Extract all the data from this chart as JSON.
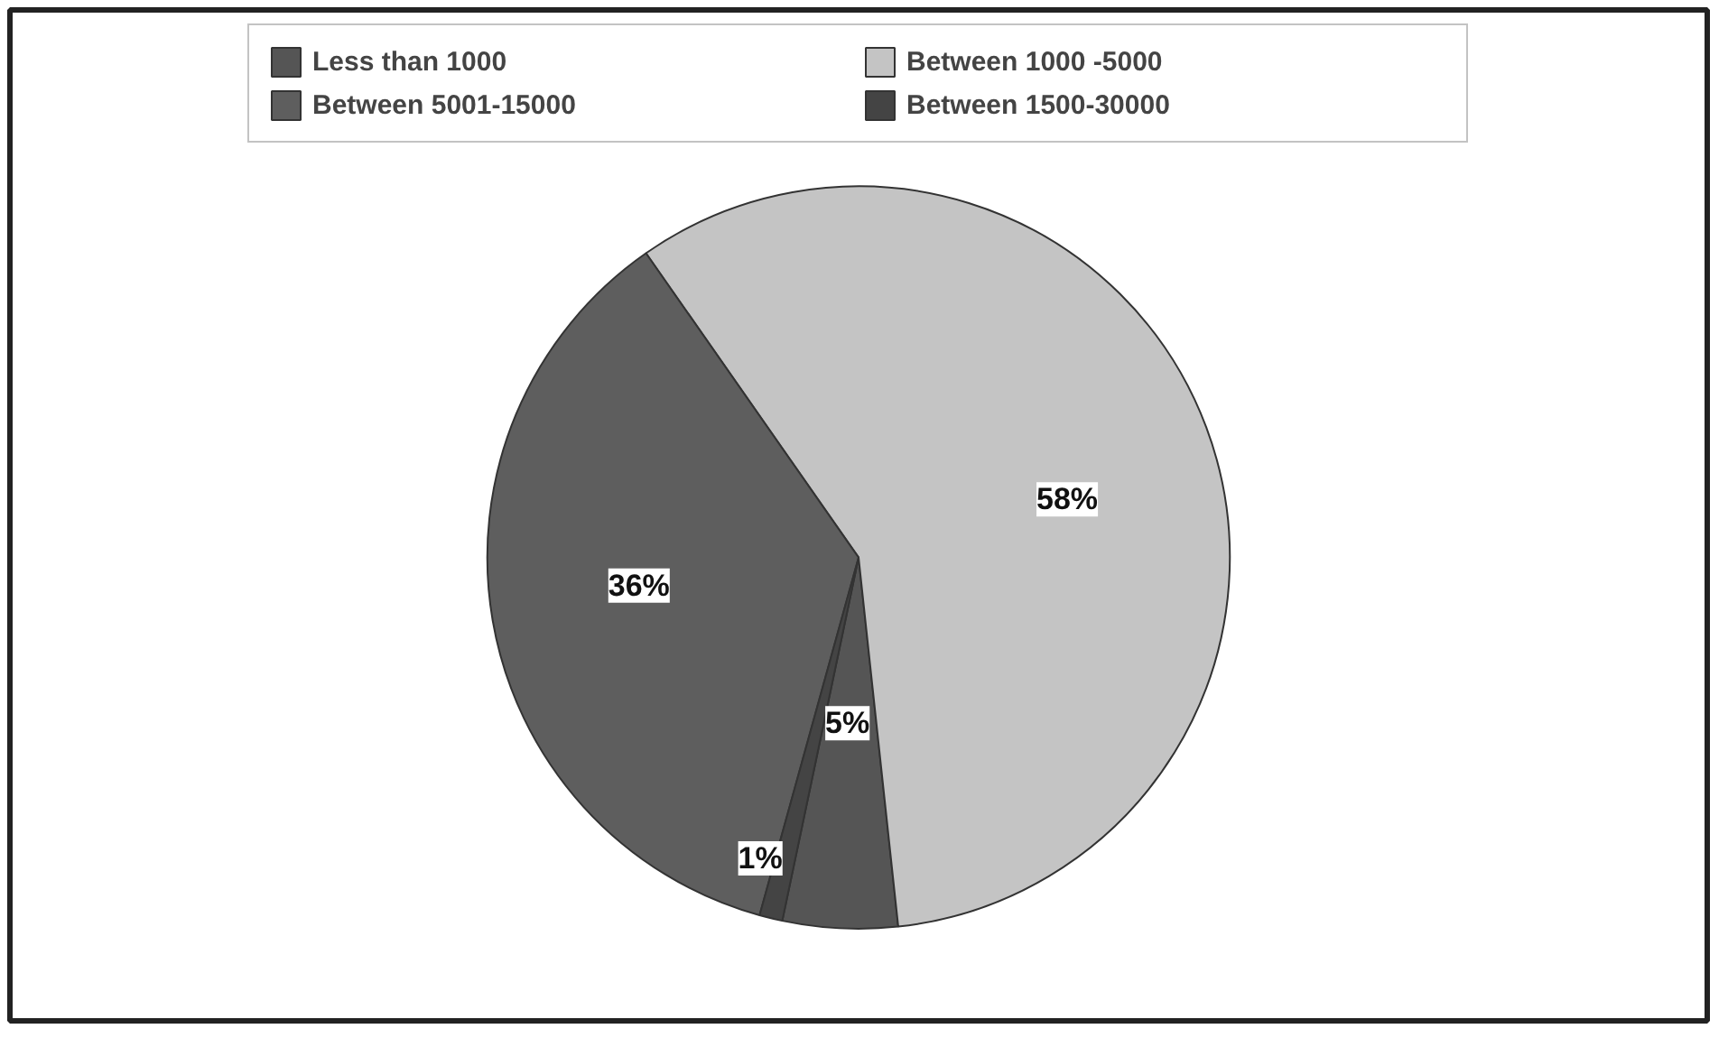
{
  "chart_data": {
    "type": "pie",
    "categories": [
      "Less than 1000",
      "Between 1000 -5000",
      "Between 5001-15000",
      "Between 1500-30000"
    ],
    "values": [
      5,
      58,
      36,
      1
    ],
    "colors": [
      "#555555",
      "#c4c4c4",
      "#5e5e5e",
      "#444444"
    ],
    "value_labels": [
      "5%",
      "58%",
      "36%",
      "1%"
    ],
    "legend": "top"
  }
}
